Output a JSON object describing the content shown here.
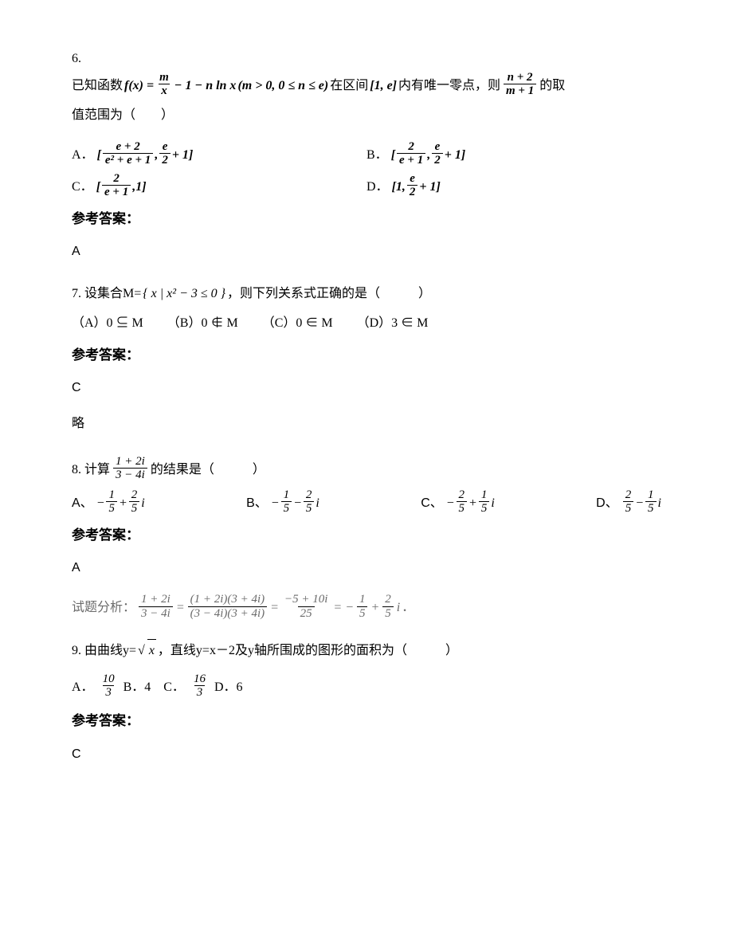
{
  "q6": {
    "number": "6.",
    "prefix": "已知函数",
    "fx_left": "f(x) =",
    "fx_frac_num": "m",
    "fx_frac_den": "x",
    "fx_mid": "− 1 − n ln x",
    "fx_cond": "(m > 0, 0 ≤ n ≤ e)",
    "mid_text1": "在区间",
    "interval": "[1, e]",
    "mid_text2": "内有唯一零点，则",
    "tail_frac_num": "n + 2",
    "tail_frac_den": "m + 1",
    "tail_text": "的取",
    "line2": "值范围为（　　）",
    "optA_label": "A．",
    "optA_lb_num": "e + 2",
    "optA_lb_den": "e² + e + 1",
    "optA_ub_num": "e",
    "optA_ub_den": "2",
    "optA_plus": "+ 1",
    "optB_label": "B．",
    "optB_lb_num": "2",
    "optB_lb_den": "e + 1",
    "optB_ub_num": "e",
    "optB_ub_den": "2",
    "optB_plus": "+ 1",
    "optC_label": "C．",
    "optC_lb_num": "2",
    "optC_lb_den": "e + 1",
    "optC_ub": "1",
    "optD_label": "D．",
    "optD_lb": "1,",
    "optD_ub_num": "e",
    "optD_ub_den": "2",
    "optD_plus": "+ 1",
    "ans_head": "参考答案：",
    "ans": "A"
  },
  "q7": {
    "pre": "7. 设集合M=",
    "set_expr": "{ x | x² − 3 ≤ 0 }",
    "post": "，则下列关系式正确的是（　　　）",
    "optA": "（A）0 ⊆ M",
    "optB": "（B）0 ∉ M",
    "optC": "（C）0 ∈ M",
    "optD": "（D）3 ∈ M",
    "ans_head": "参考答案：",
    "ans": "C",
    "note": "略"
  },
  "q8": {
    "pre": "8. 计算",
    "frac_num": "1 + 2i",
    "frac_den": "3 − 4i",
    "post": "的结果是（　　　）",
    "A_label": "A、",
    "A_s1n": "1",
    "A_s1d": "5",
    "A_s2n": "2",
    "A_s2d": "5",
    "A_signs": "− + i",
    "B_label": "B、",
    "B_signs": "− − i",
    "C_label": "C、",
    "C_s1n": "2",
    "C_s1d": "5",
    "C_s2n": "1",
    "C_s2d": "5",
    "C_signs": "− + i",
    "D_label": "D、",
    "D_signs": " − i",
    "ans_head": "参考答案：",
    "ans": "A",
    "sol_pre": "试题分析：",
    "sol_f1n": "1 + 2i",
    "sol_f1d": "3 − 4i",
    "sol_f2n": "(1 + 2i)(3 + 4i)",
    "sol_f2d": "(3 − 4i)(3 + 4i)",
    "sol_f3n": "−5 + 10i",
    "sol_f3d": "25",
    "sol_post": "．"
  },
  "q9": {
    "pre": "9. 由曲线y=",
    "sq": "x",
    "mid": "，直线y=x－2及y轴所围成的图形的面积为（　　　）",
    "A_label": "A．",
    "A_num": "10",
    "A_den": "3",
    "B": "B．4",
    "C_label": "C．",
    "C_num": "16",
    "C_den": "3",
    "D": "D．6",
    "ans_head": "参考答案：",
    "ans": "C"
  }
}
